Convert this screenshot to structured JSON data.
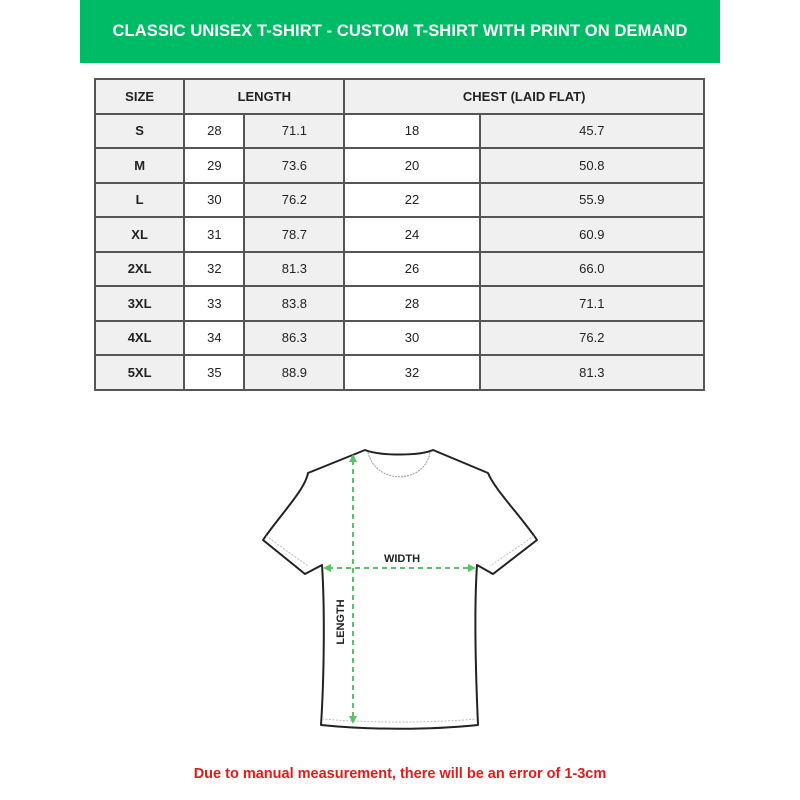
{
  "title": "CLASSIC UNISEX T-SHIRT - CUSTOM T-SHIRT WITH PRINT ON DEMAND",
  "table": {
    "headers": {
      "size": "SIZE",
      "length": "LENGTH",
      "chest": "CHEST (LAID FLAT)"
    },
    "rows": [
      {
        "size": "S",
        "length_in": "28",
        "length_cm": "71.1",
        "chest_in": "18",
        "chest_cm": "45.7"
      },
      {
        "size": "M",
        "length_in": "29",
        "length_cm": "73.6",
        "chest_in": "20",
        "chest_cm": "50.8"
      },
      {
        "size": "L",
        "length_in": "30",
        "length_cm": "76.2",
        "chest_in": "22",
        "chest_cm": "55.9"
      },
      {
        "size": "XL",
        "length_in": "31",
        "length_cm": "78.7",
        "chest_in": "24",
        "chest_cm": "60.9"
      },
      {
        "size": "2XL",
        "length_in": "32",
        "length_cm": "81.3",
        "chest_in": "26",
        "chest_cm": "66.0"
      },
      {
        "size": "3XL",
        "length_in": "33",
        "length_cm": "83.8",
        "chest_in": "28",
        "chest_cm": "71.1"
      },
      {
        "size": "4XL",
        "length_in": "34",
        "length_cm": "86.3",
        "chest_in": "30",
        "chest_cm": "76.2"
      },
      {
        "size": "5XL",
        "length_in": "35",
        "length_cm": "88.9",
        "chest_in": "32",
        "chest_cm": "81.3"
      }
    ]
  },
  "diagram": {
    "width_label": "WIDTH",
    "length_label": "LENGTH"
  },
  "note": "Due to manual measurement, there will be an error of 1-3cm",
  "colors": {
    "brand": "#00bb66",
    "note": "#e01b1b",
    "arrow": "#5cc16a"
  }
}
